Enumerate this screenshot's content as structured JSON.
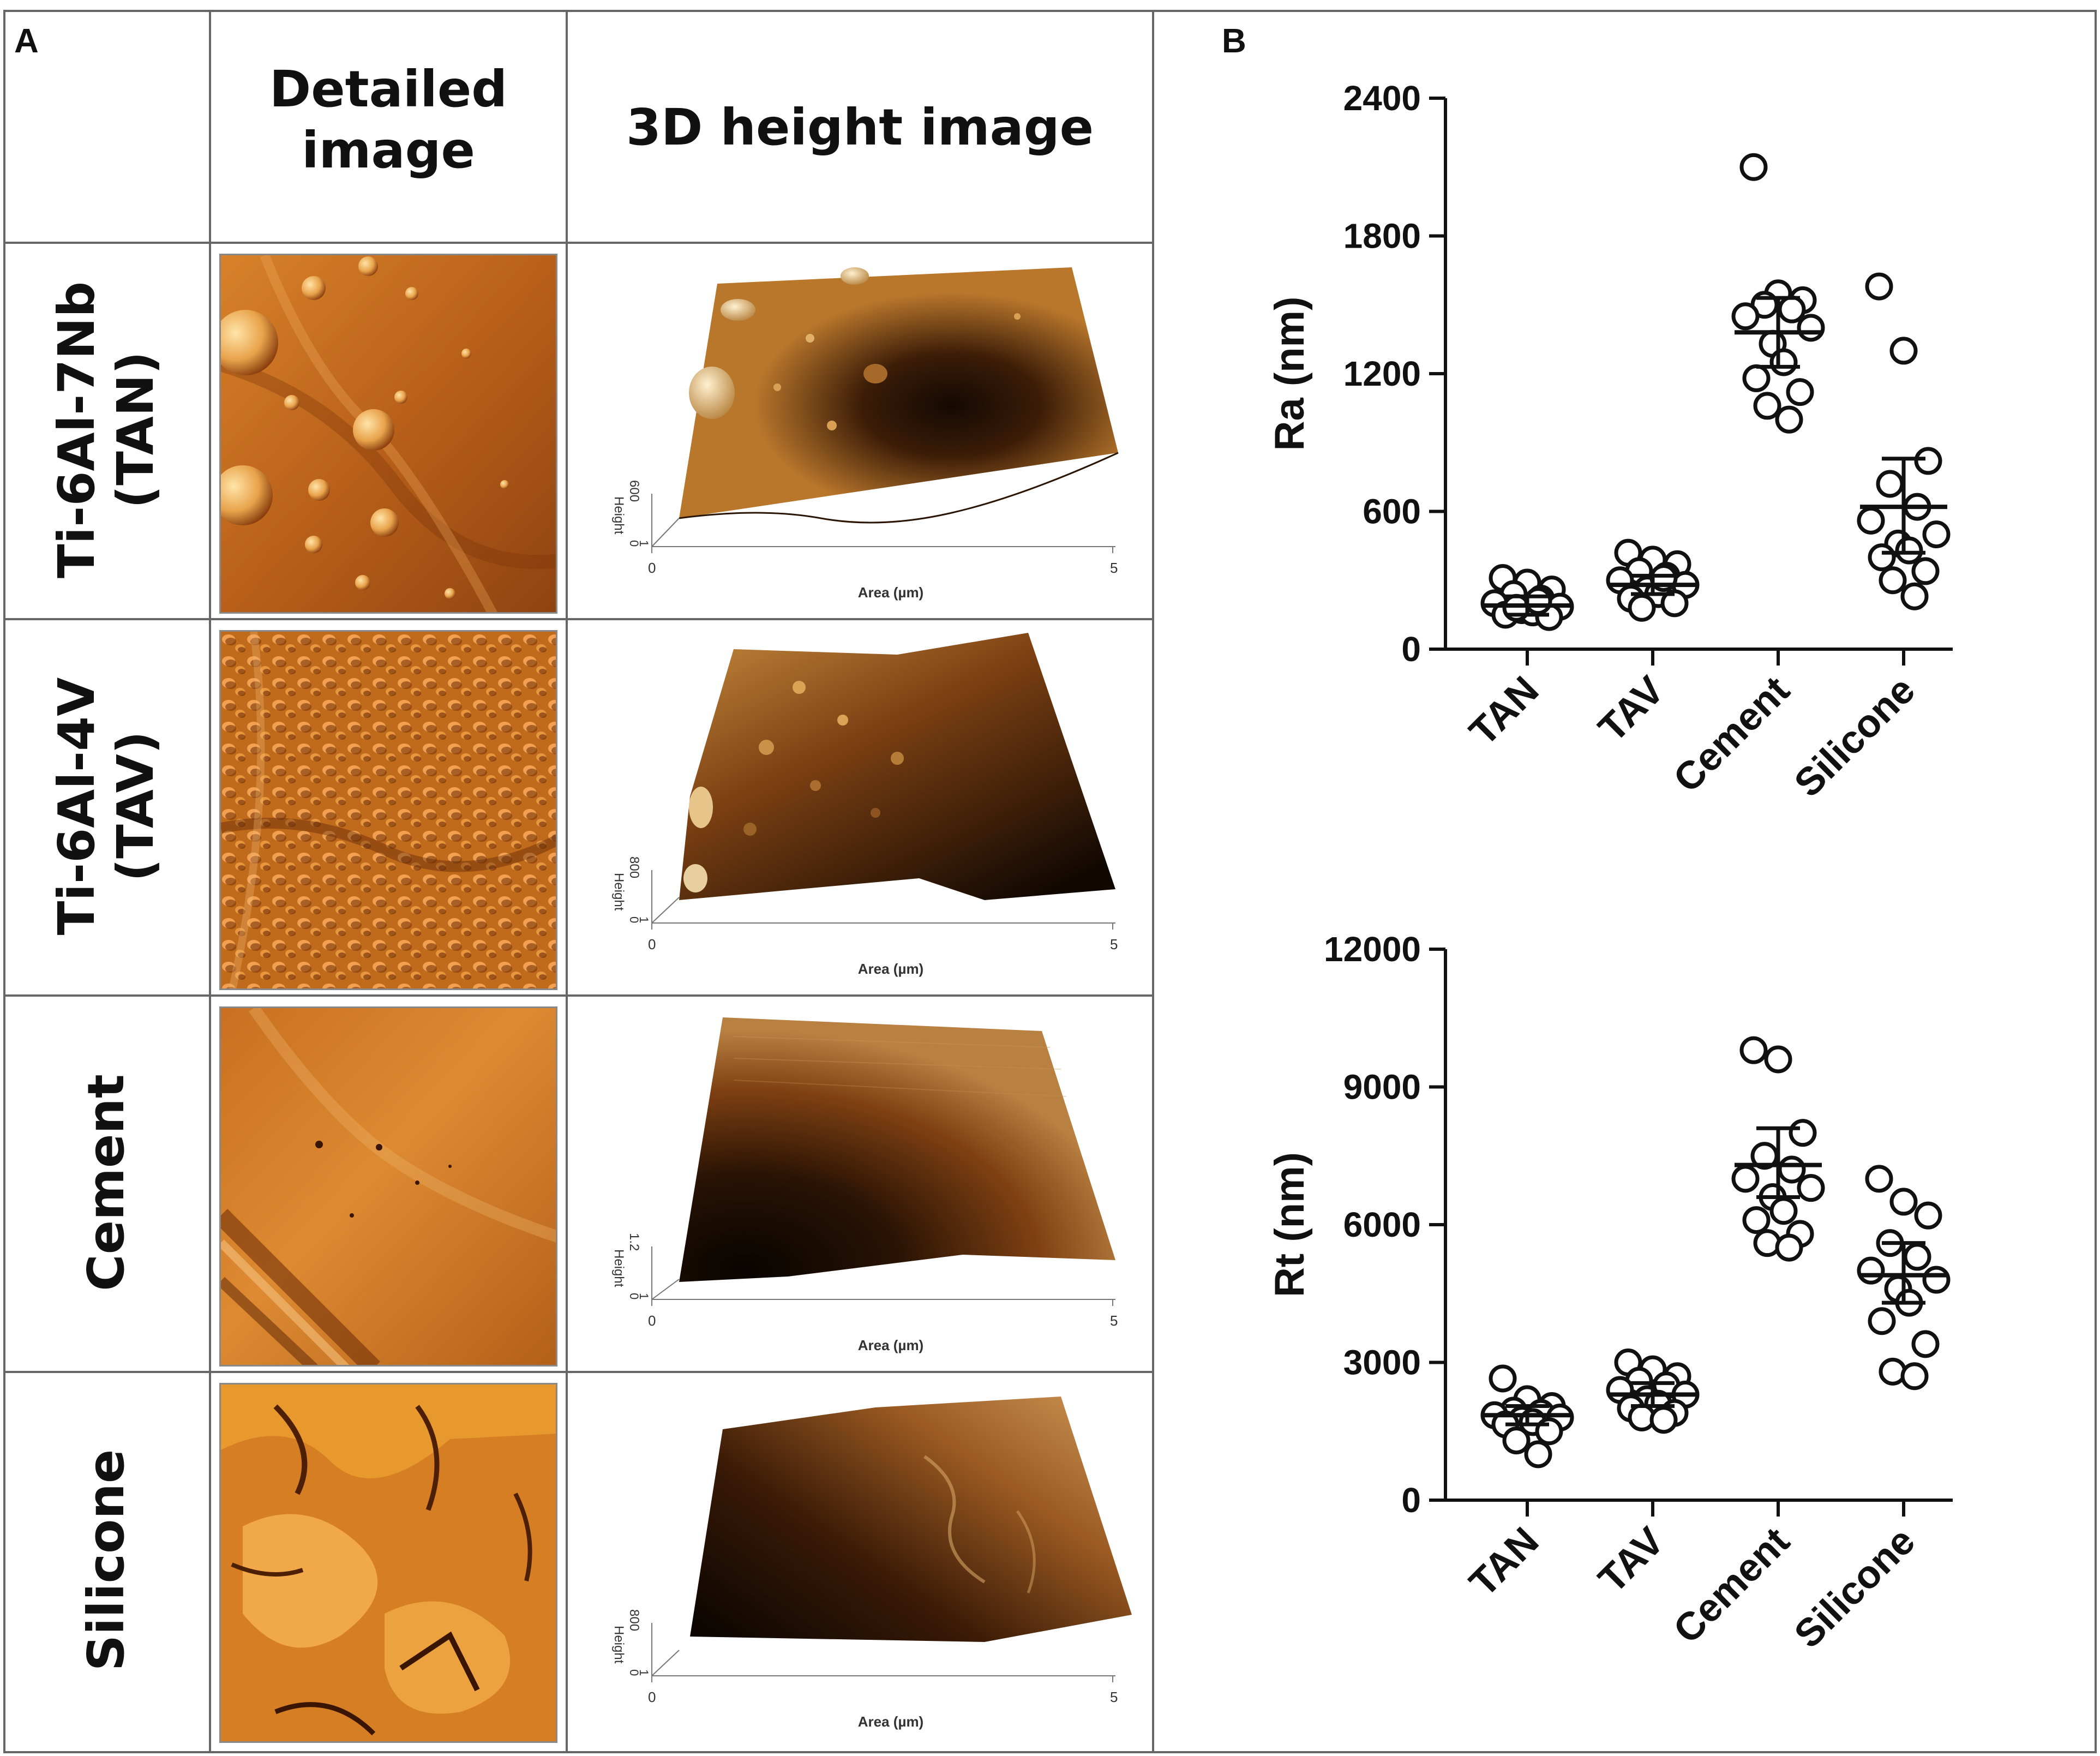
{
  "panel_a": {
    "label": "A",
    "col_detailed": [
      "Detailed",
      "image"
    ],
    "col_3d": "3D height image",
    "rows": [
      {
        "lines": [
          "Ti-6Al-7Nb",
          "(TAN)"
        ],
        "height_tick": "600",
        "height_label": "Height",
        "zero": "0",
        "one": "1",
        "x0": "0",
        "x1": "5",
        "area_label": "Area (µm)"
      },
      {
        "lines": [
          "Ti-6Al-4V",
          "(TAV)"
        ],
        "height_tick": "800",
        "height_label": "Height",
        "zero": "0",
        "one": "1",
        "x0": "0",
        "x1": "5",
        "area_label": "Area (µm)"
      },
      {
        "lines": [
          "Cement"
        ],
        "height_tick": "1.2",
        "height_label": "Height",
        "zero": "0",
        "one": "1",
        "x0": "0",
        "x1": "5",
        "area_label": "Area (µm)"
      },
      {
        "lines": [
          "Silicone"
        ],
        "height_tick": "800",
        "height_label": "Height",
        "zero": "0",
        "one": "1",
        "x0": "0",
        "x1": "5",
        "area_label": "Area (µm)"
      }
    ]
  },
  "panel_b": {
    "label": "B"
  },
  "chart_data": [
    {
      "type": "scatter",
      "ylabel": "Ra (nm)",
      "ylim": [
        0,
        2400
      ],
      "yticks": [
        0,
        600,
        1200,
        1800,
        2400
      ],
      "categories": [
        "TAN",
        "TAV",
        "Cement",
        "Silicone"
      ],
      "series": [
        {
          "category": "TAN",
          "points": [
            310,
            290,
            260,
            240,
            220,
            200,
            185,
            170,
            160,
            150,
            140,
            180,
            210
          ],
          "mean": 190,
          "ci": [
            150,
            230
          ]
        },
        {
          "category": "TAV",
          "points": [
            420,
            390,
            370,
            340,
            320,
            300,
            280,
            260,
            240,
            220,
            200,
            180,
            310
          ],
          "mean": 280,
          "ci": [
            240,
            320
          ]
        },
        {
          "category": "Cement",
          "points": [
            2100,
            1550,
            1520,
            1500,
            1480,
            1450,
            1400,
            1330,
            1250,
            1180,
            1120,
            1060,
            1000
          ],
          "mean": 1380,
          "ci": [
            1230,
            1530
          ]
        },
        {
          "category": "Silicone",
          "points": [
            1580,
            1300,
            820,
            720,
            620,
            560,
            500,
            460,
            430,
            400,
            340,
            300,
            230
          ],
          "mean": 620,
          "ci": [
            420,
            830
          ]
        }
      ]
    },
    {
      "type": "scatter",
      "ylabel": "Rt (nm)",
      "ylim": [
        0,
        12000
      ],
      "yticks": [
        0,
        3000,
        6000,
        9000,
        12000
      ],
      "categories": [
        "TAN",
        "TAV",
        "Cement",
        "Silicone"
      ],
      "series": [
        {
          "category": "TAN",
          "points": [
            2650,
            2200,
            2050,
            1950,
            1900,
            1850,
            1800,
            1750,
            1700,
            1650,
            1500,
            1300,
            1000
          ],
          "mean": 1850,
          "ci": [
            1650,
            2050
          ]
        },
        {
          "category": "TAV",
          "points": [
            3000,
            2850,
            2700,
            2600,
            2500,
            2400,
            2300,
            2200,
            2100,
            2000,
            1900,
            1800,
            1750
          ],
          "mean": 2300,
          "ci": [
            2050,
            2550
          ]
        },
        {
          "category": "Cement",
          "points": [
            9800,
            9600,
            8000,
            7500,
            7200,
            7000,
            6800,
            6600,
            6300,
            6100,
            5800,
            5600,
            5500
          ],
          "mean": 7300,
          "ci": [
            6600,
            8100
          ]
        },
        {
          "category": "Silicone",
          "points": [
            7000,
            6500,
            6200,
            5600,
            5300,
            5000,
            4800,
            4600,
            4300,
            3900,
            3400,
            2800,
            2700
          ],
          "mean": 4900,
          "ci": [
            4300,
            5600
          ]
        }
      ]
    }
  ]
}
